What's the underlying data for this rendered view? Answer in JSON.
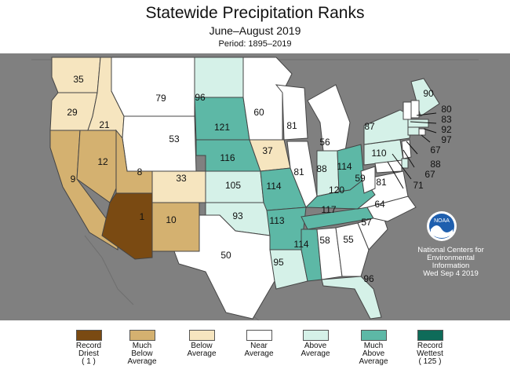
{
  "header": {
    "title": "Statewide Precipitation Ranks",
    "subtitle": "June–August 2019",
    "period": "Period: 1895–2019"
  },
  "colors": {
    "record_driest": "#7a4a12",
    "much_below": "#d4b170",
    "below": "#f6e5bf",
    "near": "#ffffff",
    "above": "#d5f1e8",
    "much_above": "#5db8a6",
    "record_wettest": "#0e6b59",
    "background": "#808080",
    "border": "#444444"
  },
  "states": [
    {
      "name": "Washington",
      "rank": "35",
      "category": "below"
    },
    {
      "name": "Oregon",
      "rank": "29",
      "category": "below"
    },
    {
      "name": "Idaho",
      "rank": "21",
      "category": "below"
    },
    {
      "name": "Montana",
      "rank": "79",
      "category": "near"
    },
    {
      "name": "Wyoming",
      "rank": "53",
      "category": "near"
    },
    {
      "name": "California",
      "rank": "9",
      "category": "much_below"
    },
    {
      "name": "Nevada",
      "rank": "12",
      "category": "much_below"
    },
    {
      "name": "Utah",
      "rank": "8",
      "category": "much_below"
    },
    {
      "name": "Colorado",
      "rank": "33",
      "category": "below"
    },
    {
      "name": "Arizona",
      "rank": "1",
      "category": "record_driest"
    },
    {
      "name": "New Mexico",
      "rank": "10",
      "category": "much_below"
    },
    {
      "name": "North Dakota",
      "rank": "96",
      "category": "above"
    },
    {
      "name": "South Dakota",
      "rank": "121",
      "category": "much_above"
    },
    {
      "name": "Nebraska",
      "rank": "116",
      "category": "much_above"
    },
    {
      "name": "Kansas",
      "rank": "105",
      "category": "above"
    },
    {
      "name": "Oklahoma",
      "rank": "93",
      "category": "above"
    },
    {
      "name": "Texas",
      "rank": "50",
      "category": "near"
    },
    {
      "name": "Minnesota",
      "rank": "60",
      "category": "near"
    },
    {
      "name": "Iowa",
      "rank": "37",
      "category": "below"
    },
    {
      "name": "Missouri",
      "rank": "114",
      "category": "much_above"
    },
    {
      "name": "Arkansas",
      "rank": "113",
      "category": "much_above"
    },
    {
      "name": "Louisiana",
      "rank": "95",
      "category": "above"
    },
    {
      "name": "Wisconsin",
      "rank": "81",
      "category": "near"
    },
    {
      "name": "Illinois",
      "rank": "81",
      "category": "near"
    },
    {
      "name": "Michigan",
      "rank": "56",
      "category": "near"
    },
    {
      "name": "Indiana",
      "rank": "88",
      "category": "above"
    },
    {
      "name": "Ohio",
      "rank": "114",
      "category": "much_above"
    },
    {
      "name": "Kentucky",
      "rank": "120",
      "category": "much_above"
    },
    {
      "name": "Tennessee",
      "rank": "117",
      "category": "much_above"
    },
    {
      "name": "Mississippi",
      "rank": "114",
      "category": "much_above"
    },
    {
      "name": "Alabama",
      "rank": "58",
      "category": "near"
    },
    {
      "name": "Georgia",
      "rank": "55",
      "category": "near"
    },
    {
      "name": "Florida",
      "rank": "96",
      "category": "above"
    },
    {
      "name": "South Carolina",
      "rank": "57",
      "category": "near"
    },
    {
      "name": "North Carolina",
      "rank": "64",
      "category": "near"
    },
    {
      "name": "Virginia",
      "rank": "81",
      "category": "near"
    },
    {
      "name": "West Virginia",
      "rank": "59",
      "category": "near"
    },
    {
      "name": "Pennsylvania",
      "rank": "110",
      "category": "above"
    },
    {
      "name": "New York",
      "rank": "87",
      "category": "above"
    },
    {
      "name": "Maine",
      "rank": "90",
      "category": "above"
    },
    {
      "name": "New Hampshire",
      "rank": "80",
      "category": "near"
    },
    {
      "name": "Vermont",
      "rank": "83",
      "category": "near"
    },
    {
      "name": "Massachusetts",
      "rank": "92",
      "category": "above"
    },
    {
      "name": "Connecticut",
      "rank": "97",
      "category": "above"
    },
    {
      "name": "New Jersey",
      "rank": "67",
      "category": "near"
    },
    {
      "name": "Delaware",
      "rank": "88",
      "category": "above"
    },
    {
      "name": "Maryland",
      "rank": "67",
      "category": "near"
    },
    {
      "name": "Rhode Island",
      "rank": "71",
      "category": "near"
    }
  ],
  "credit": {
    "logo_text": "NOAA",
    "line1": "National Centers for",
    "line2": "Environmental",
    "line3": "Information",
    "date": "Wed Sep  4 2019"
  },
  "legend": [
    {
      "key": "record_driest",
      "lines": [
        "Record",
        "Driest",
        "( 1 )"
      ]
    },
    {
      "key": "much_below",
      "lines": [
        "Much",
        "Below",
        "Average"
      ]
    },
    {
      "key": "below",
      "lines": [
        "Below",
        "Average"
      ]
    },
    {
      "key": "near",
      "lines": [
        "Near",
        "Average"
      ]
    },
    {
      "key": "above",
      "lines": [
        "Above",
        "Average"
      ]
    },
    {
      "key": "much_above",
      "lines": [
        "Much",
        "Above",
        "Average"
      ]
    },
    {
      "key": "record_wettest",
      "lines": [
        "Record",
        "Wettest",
        "( 125 )"
      ]
    }
  ]
}
